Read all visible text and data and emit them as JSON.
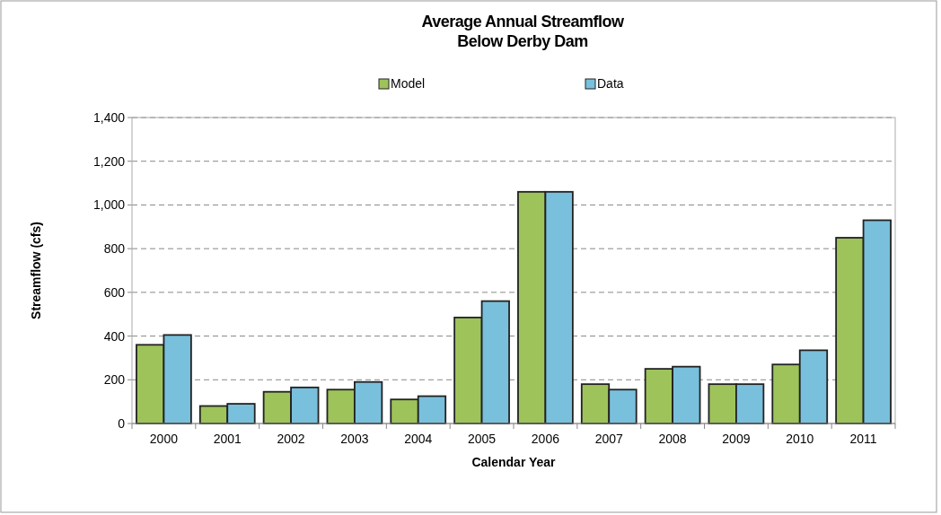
{
  "chart_data": {
    "type": "bar",
    "title": "Average Annual Streamflow\nBelow Derby Dam",
    "xlabel": "Calendar Year",
    "ylabel": "Streamflow (cfs)",
    "categories": [
      "2000",
      "2001",
      "2002",
      "2003",
      "2004",
      "2005",
      "2006",
      "2007",
      "2008",
      "2009",
      "2010",
      "2011"
    ],
    "series": [
      {
        "name": "Model",
        "color": "#9dc35a",
        "values": [
          360,
          80,
          145,
          155,
          110,
          485,
          1060,
          180,
          250,
          180,
          270,
          850
        ]
      },
      {
        "name": "Data",
        "color": "#79c0dc",
        "values": [
          405,
          90,
          165,
          190,
          125,
          560,
          1060,
          155,
          260,
          180,
          335,
          930
        ]
      }
    ],
    "ylim": [
      0,
      1400
    ],
    "yticks": [
      {
        "value": 0,
        "label": "0"
      },
      {
        "value": 200,
        "label": "200"
      },
      {
        "value": 400,
        "label": "400"
      },
      {
        "value": 600,
        "label": "600"
      },
      {
        "value": 800,
        "label": "800"
      },
      {
        "value": 1000,
        "label": "1,000"
      },
      {
        "value": 1200,
        "label": "1,200"
      },
      {
        "value": 1400,
        "label": "1,400"
      }
    ],
    "grid": "y",
    "legend": "top",
    "line_style": "dashed"
  }
}
